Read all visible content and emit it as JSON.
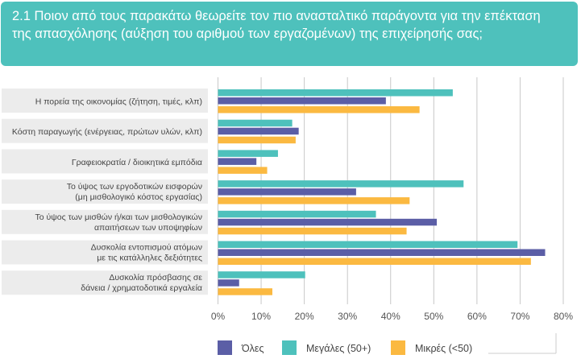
{
  "header": {
    "title": "2.1 Ποιον από τους παρακάτω θεωρείτε τον πιο ανασταλτικό παράγοντα για την επέκταση της απασχόλησης (αύξηση του αριθμού των εργαζομένων) της επιχείρησής σας;"
  },
  "colors": {
    "all": "#5b5ea6",
    "large": "#4ec1bc",
    "small": "#fbb941",
    "header": "#4ec1bc",
    "label_bg": "#ececec"
  },
  "chart_data": {
    "type": "bar",
    "orientation": "horizontal",
    "categories": [
      [
        "Η πορεία της οικονομίας (ζήτηση, τιμές, κλπ)"
      ],
      [
        "Κόστη παραγωγής (ενέργειας, πρώτων υλών, κλπ)"
      ],
      [
        "Γραφειοκρατία / διοικητικά εμπόδια"
      ],
      [
        "Το ύψος των εργοδοτικών εισφορών",
        "(μη μισθολογικό κόστος εργασίας)"
      ],
      [
        "Το ύψος των μισθών ή/και των μισθολογικών",
        "απαιτήσεων των υποψηφίων"
      ],
      [
        "Δυσκολία εντοπισμού ατόμων",
        "με τις κατάλληλες δεξιότητες"
      ],
      [
        "Δυσκολία πρόσβασης σε",
        "δάνεια / χρηματοδοτικά εργαλεία"
      ]
    ],
    "series": [
      {
        "name": "Μεγάλες (50+)",
        "key": "large",
        "values": [
          54.4,
          17.2,
          13.9,
          56.9,
          36.6,
          69.4,
          20.2
        ]
      },
      {
        "name": "Όλες",
        "key": "all",
        "values": [
          38.9,
          18.7,
          8.9,
          32.0,
          50.7,
          75.8,
          4.9
        ]
      },
      {
        "name": "Μικρές  (<50)",
        "key": "small",
        "values": [
          46.7,
          18.0,
          11.4,
          44.4,
          43.7,
          72.5,
          12.6
        ]
      }
    ],
    "legend_order": [
      "Όλες",
      "Μεγάλες (50+)",
      "Μικρές  (<50)"
    ],
    "xlim": [
      0,
      80
    ],
    "xticks": [
      "0%",
      "10%",
      "20%",
      "30%",
      "40%",
      "50%",
      "60%",
      "70%",
      "80%"
    ],
    "grid": true,
    "legend_position": "bottom"
  }
}
